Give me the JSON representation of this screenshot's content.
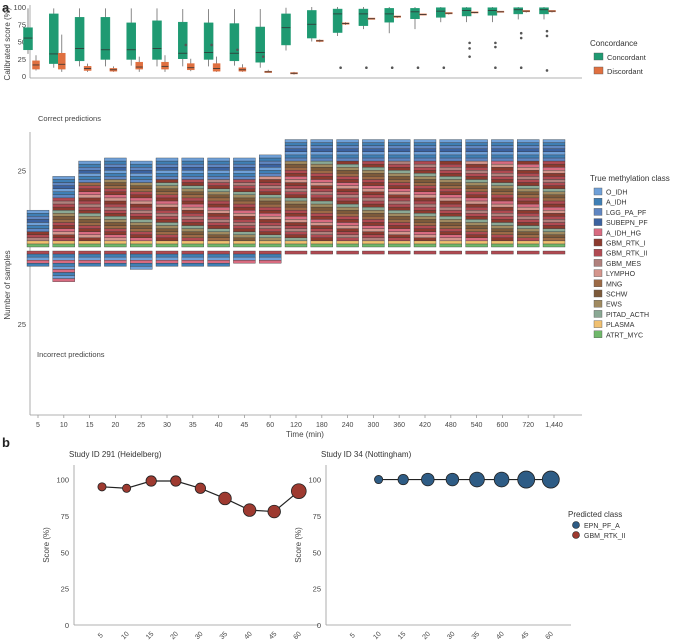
{
  "panels": {
    "a": "a",
    "b": "b"
  },
  "time_labels": [
    "5",
    "10",
    "15",
    "20",
    "25",
    "30",
    "35",
    "40",
    "45",
    "60",
    "120",
    "180",
    "240",
    "300",
    "360",
    "420",
    "480",
    "540",
    "600",
    "720",
    "1,440"
  ],
  "colors": {
    "concordant": "#1f9a72",
    "discordant": "#e07040",
    "epn": "#2e5c85",
    "gbm": "#9e3a30",
    "classes": [
      "#6fa0d8",
      "#3f7fb5",
      "#5f86c2",
      "#3b62a0",
      "#d86b80",
      "#8c3a2e",
      "#b04a52",
      "#b0807c",
      "#d4958c",
      "#9c6a46",
      "#7d5a3a",
      "#a08a60",
      "#8aa894",
      "#f0c070",
      "#6fb86a"
    ]
  },
  "legend_conc": {
    "title": "Concordance",
    "items": [
      "Concordant",
      "Discordant"
    ]
  },
  "legend_class": {
    "title": "True methylation class",
    "items": [
      "O_IDH",
      "A_IDH",
      "LGG_PA_PF",
      "SUBEPN_PF",
      "A_IDH_HG",
      "GBM_RTK_I",
      "GBM_RTK_II",
      "GBM_MES",
      "LYMPHO",
      "MNG",
      "SCHW",
      "EWS",
      "PITAD_ACTH",
      "PLASMA",
      "ATRT_MYC"
    ]
  },
  "legend_pred": {
    "title": "Predicted class",
    "items": [
      "EPN_PF_A",
      "GBM_RTK_II"
    ]
  },
  "chart_data": [
    {
      "type": "boxplot",
      "title": "",
      "ylabel": "Calibrated score (%)",
      "ylim": [
        0,
        100
      ],
      "yticks": [
        "0",
        "25",
        "50",
        "75",
        "100"
      ],
      "categories": [
        "5",
        "10",
        "15",
        "20",
        "25",
        "30",
        "35",
        "40",
        "45",
        "60",
        "120",
        "180",
        "240",
        "300",
        "360",
        "420",
        "480",
        "540",
        "600",
        "720",
        "1,440"
      ],
      "series": [
        {
          "name": "Concordant",
          "boxes": [
            {
              "lo": 32,
              "q1": 38,
              "med": 55,
              "q3": 70,
              "hi": 98
            },
            {
              "lo": 12,
              "q1": 18,
              "med": 32,
              "q3": 90,
              "hi": 98
            },
            {
              "lo": 14,
              "q1": 22,
              "med": 40,
              "q3": 85,
              "hi": 98
            },
            {
              "lo": 14,
              "q1": 24,
              "med": 38,
              "q3": 85,
              "hi": 98
            },
            {
              "lo": 15,
              "q1": 24,
              "med": 38,
              "q3": 77,
              "hi": 98
            },
            {
              "lo": 14,
              "q1": 24,
              "med": 40,
              "q3": 80,
              "hi": 98
            },
            {
              "lo": 14,
              "q1": 25,
              "med": 33,
              "q3": 78,
              "hi": 97
            },
            {
              "lo": 14,
              "q1": 24,
              "med": 34,
              "q3": 77,
              "hi": 97
            },
            {
              "lo": 15,
              "q1": 22,
              "med": 33,
              "q3": 76,
              "hi": 97
            },
            {
              "lo": 12,
              "q1": 20,
              "med": 34,
              "q3": 71,
              "hi": 97
            },
            {
              "lo": 37,
              "q1": 45,
              "med": 70,
              "q3": 90,
              "hi": 99
            },
            {
              "lo": 50,
              "q1": 55,
              "med": 75,
              "q3": 95,
              "hi": 100
            },
            {
              "lo": 58,
              "q1": 63,
              "med": 90,
              "q3": 97,
              "hi": 100
            },
            {
              "lo": 68,
              "q1": 73,
              "med": 90,
              "q3": 97,
              "hi": 100
            },
            {
              "lo": 62,
              "q1": 78,
              "med": 90,
              "q3": 98,
              "hi": 100
            },
            {
              "lo": 68,
              "q1": 83,
              "med": 93,
              "q3": 98,
              "hi": 100
            },
            {
              "lo": 78,
              "q1": 85,
              "med": 94,
              "q3": 99,
              "hi": 100
            },
            {
              "lo": 78,
              "q1": 87,
              "med": 95,
              "q3": 99,
              "hi": 100
            },
            {
              "lo": 78,
              "q1": 88,
              "med": 95,
              "q3": 99,
              "hi": 100
            },
            {
              "lo": 82,
              "q1": 90,
              "med": 96,
              "q3": 99,
              "hi": 100
            },
            {
              "lo": 82,
              "q1": 90,
              "med": 96,
              "q3": 99,
              "hi": 100
            }
          ],
          "outliers": [
            [],
            [],
            [],
            [],
            [],
            [],
            [
              45
            ],
            [
              45
            ],
            [
              38
            ],
            [
              28
            ],
            [],
            [],
            [
              12
            ],
            [
              12
            ],
            [
              12
            ],
            [
              12
            ],
            [
              12
            ],
            [
              28,
              40,
              48
            ],
            [
              12,
              42,
              48
            ],
            [
              12,
              55,
              62
            ],
            [
              8,
              58,
              65
            ]
          ]
        },
        {
          "name": "Discordant",
          "boxes": [
            {
              "lo": 8,
              "q1": 10,
              "med": 16,
              "q3": 22,
              "hi": 30
            },
            {
              "lo": 6,
              "q1": 10,
              "med": 17,
              "q3": 33,
              "hi": 60
            },
            {
              "lo": 6,
              "q1": 8,
              "med": 11,
              "q3": 14,
              "hi": 18
            },
            {
              "lo": 6,
              "q1": 7,
              "med": 9,
              "q3": 11,
              "hi": 14
            },
            {
              "lo": 6,
              "q1": 10,
              "med": 13,
              "q3": 20,
              "hi": 28
            },
            {
              "lo": 6,
              "q1": 10,
              "med": 14,
              "q3": 20,
              "hi": 30
            },
            {
              "lo": 7,
              "q1": 9,
              "med": 12,
              "q3": 18,
              "hi": 25
            },
            {
              "lo": 6,
              "q1": 7,
              "med": 11,
              "q3": 18,
              "hi": 28
            },
            {
              "lo": 6,
              "q1": 7,
              "med": 9,
              "q3": 12,
              "hi": 17
            },
            {
              "lo": 5,
              "q1": 5,
              "med": 6,
              "q3": 7,
              "hi": 9
            },
            {
              "lo": 2,
              "q1": 3,
              "med": 4,
              "q3": 5,
              "hi": 6
            },
            {
              "lo": 49,
              "q1": 50,
              "med": 51,
              "q3": 52,
              "hi": 53
            },
            {
              "lo": 74,
              "q1": 75,
              "med": 76,
              "q3": 77,
              "hi": 78
            },
            {
              "lo": 82,
              "q1": 82,
              "med": 83,
              "q3": 84,
              "hi": 84
            },
            {
              "lo": 84,
              "q1": 85,
              "med": 86,
              "q3": 87,
              "hi": 87
            },
            {
              "lo": 88,
              "q1": 89,
              "med": 89,
              "q3": 90,
              "hi": 90
            },
            {
              "lo": 89,
              "q1": 90,
              "med": 91,
              "q3": 92,
              "hi": 92
            },
            {
              "lo": 91,
              "q1": 92,
              "med": 92,
              "q3": 93,
              "hi": 93
            },
            {
              "lo": 92,
              "q1": 93,
              "med": 93,
              "q3": 94,
              "hi": 94
            },
            {
              "lo": 92,
              "q1": 93,
              "med": 94,
              "q3": 95,
              "hi": 95
            },
            {
              "lo": 92,
              "q1": 93,
              "med": 94,
              "q3": 95,
              "hi": 95
            }
          ],
          "outliers": []
        }
      ]
    },
    {
      "type": "bar",
      "stacked": true,
      "diverging": true,
      "ylabel": "Number of samples",
      "xlabel": "Time (min)",
      "annotations": [
        "Correct predictions",
        "Incorrect predictions"
      ],
      "ylim": [
        -30,
        30
      ],
      "yticks_top": [
        "25"
      ],
      "yticks_bottom": [
        "25"
      ],
      "categories": [
        "5",
        "10",
        "15",
        "20",
        "25",
        "30",
        "35",
        "40",
        "45",
        "60",
        "120",
        "180",
        "240",
        "300",
        "360",
        "420",
        "480",
        "540",
        "600",
        "720",
        "1,440"
      ],
      "correct": [
        12,
        23,
        28,
        29,
        28,
        29,
        29,
        29,
        29,
        30,
        35,
        35,
        35,
        35,
        35,
        35,
        35,
        35,
        35,
        35,
        35
      ],
      "incorrect": [
        5,
        10,
        5,
        5,
        6,
        5,
        5,
        5,
        4,
        4,
        1,
        1,
        1,
        1,
        1,
        1,
        1,
        1,
        1,
        1,
        1
      ]
    },
    {
      "type": "line",
      "title": "Study ID 291 (Heidelberg)",
      "xlabel": "Time (min)",
      "ylabel": "Score (%)",
      "ylim": [
        0,
        110
      ],
      "yticks": [
        "0",
        "25",
        "50",
        "75",
        "100"
      ],
      "x": [
        "5",
        "10",
        "15",
        "20",
        "30",
        "35",
        "40",
        "45",
        "60"
      ],
      "series": [
        {
          "name": "GBM_RTK_II",
          "values": [
            95,
            94,
            99,
            99,
            94,
            87,
            79,
            78,
            92
          ],
          "sizes": [
            1,
            1,
            2,
            2,
            2,
            3,
            3,
            3,
            4
          ]
        }
      ]
    },
    {
      "type": "line",
      "title": "Study ID 34 (Nottingham)",
      "xlabel": "Time (min)",
      "ylabel": "Score (%)",
      "ylim": [
        0,
        110
      ],
      "yticks": [
        "0",
        "25",
        "50",
        "75",
        "100"
      ],
      "x": [
        "5",
        "10",
        "15",
        "20",
        "30",
        "35",
        "40",
        "45",
        "60"
      ],
      "series": [
        {
          "name": "EPN_PF_A",
          "values": [
            null,
            100,
            100,
            100,
            100,
            100,
            100,
            100,
            100
          ],
          "sizes": [
            0,
            1,
            2,
            3,
            3,
            4,
            4,
            5,
            5
          ]
        }
      ]
    }
  ]
}
